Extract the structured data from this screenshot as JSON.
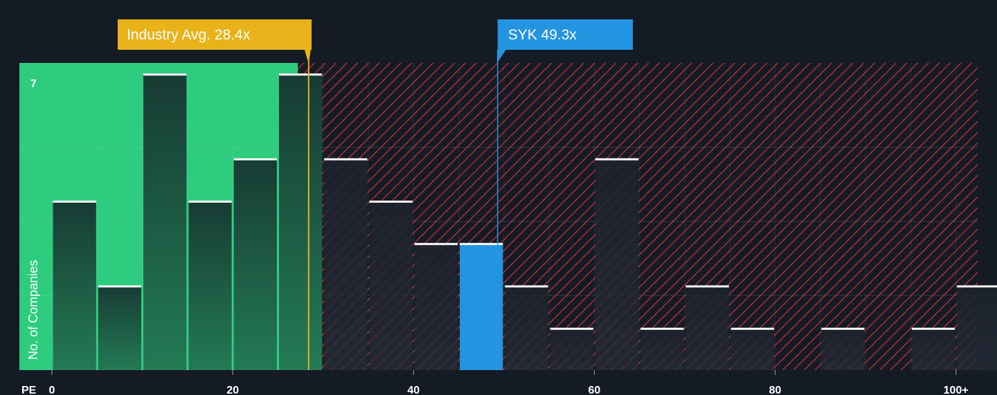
{
  "chart_data": {
    "type": "bar",
    "xlabel": "PE",
    "ylabel": "No. of Companies",
    "x_ticks": [
      "0",
      "20",
      "40",
      "60",
      "80",
      "100+"
    ],
    "y_ticks": [
      "7"
    ],
    "xlim": [
      -3.6,
      102.4
    ],
    "ylim": [
      0,
      7.25
    ],
    "bin_width": 5,
    "bins": [
      {
        "x0": 0,
        "x1": 5,
        "value": 4
      },
      {
        "x0": 5,
        "x1": 10,
        "value": 2
      },
      {
        "x0": 10,
        "x1": 15,
        "value": 7
      },
      {
        "x0": 15,
        "x1": 20,
        "value": 4
      },
      {
        "x0": 20,
        "x1": 25,
        "value": 5
      },
      {
        "x0": 25,
        "x1": 30,
        "value": 7
      },
      {
        "x0": 30,
        "x1": 35,
        "value": 5
      },
      {
        "x0": 35,
        "x1": 40,
        "value": 4
      },
      {
        "x0": 40,
        "x1": 45,
        "value": 3
      },
      {
        "x0": 45,
        "x1": 50,
        "value": 3
      },
      {
        "x0": 50,
        "x1": 55,
        "value": 2
      },
      {
        "x0": 55,
        "x1": 60,
        "value": 1
      },
      {
        "x0": 60,
        "x1": 65,
        "value": 5
      },
      {
        "x0": 65,
        "x1": 70,
        "value": 1
      },
      {
        "x0": 70,
        "x1": 75,
        "value": 2
      },
      {
        "x0": 75,
        "x1": 80,
        "value": 1
      },
      {
        "x0": 80,
        "x1": 85,
        "value": 0
      },
      {
        "x0": 85,
        "x1": 90,
        "value": 1
      },
      {
        "x0": 90,
        "x1": 95,
        "value": 0
      },
      {
        "x0": 95,
        "x1": 100,
        "value": 1
      },
      {
        "x0": 100,
        "x1": 105,
        "value": 2
      }
    ],
    "highlight_bin_x0": 45,
    "industry_avg": {
      "label": "Industry Avg. 28.4x",
      "value": 28.4
    },
    "company": {
      "label": "SYK 49.3x",
      "value": 49.3
    },
    "good_zone_max": 27.2,
    "grid": true,
    "colors": {
      "background": "#151b24",
      "good_zone": "#2ecc7f",
      "bar_good": "#1f5a44",
      "bar_bad": "#1f2530",
      "highlight": "#2394e0",
      "hatch": "#c2303d",
      "industry_callout": "#e9b21a",
      "company_callout": "#2394e0",
      "bar_top": "#ffffff"
    }
  }
}
